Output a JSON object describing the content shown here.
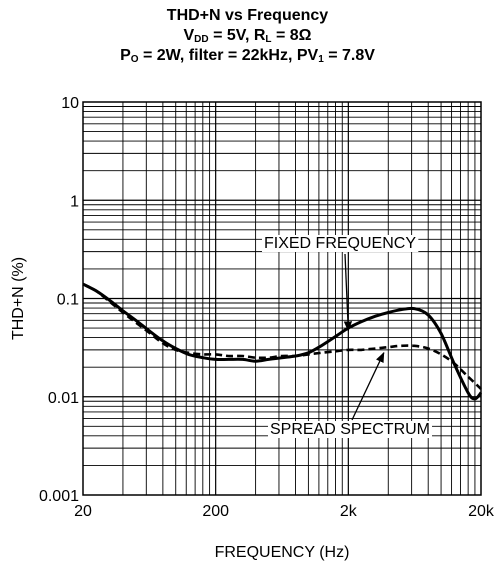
{
  "title": {
    "line1": "THD+N vs Frequency",
    "line2": {
      "vdd_sym": "V",
      "vdd_sub": "DD",
      "vdd_val": " = 5V, ",
      "rl_sym": "R",
      "rl_sub": "L",
      "rl_val": " = 8Ω"
    },
    "line3": {
      "po_sym": "P",
      "po_sub": "O",
      "po_val": " = 2W, filter = 22kHz, ",
      "pv_sym": "PV",
      "pv_sub": "1",
      "pv_val": " = 7.8V"
    }
  },
  "chart_data": {
    "type": "line",
    "xlabel": "FREQUENCY (Hz)",
    "ylabel": "THD+N (%)",
    "xscale": "log",
    "yscale": "log",
    "xlim": [
      20,
      20000
    ],
    "ylim": [
      0.001,
      10
    ],
    "grid": true,
    "xticks": [
      {
        "value": 20,
        "label": "20"
      },
      {
        "value": 200,
        "label": "200"
      },
      {
        "value": 2000,
        "label": "2k"
      },
      {
        "value": 20000,
        "label": "20k"
      }
    ],
    "yticks": [
      {
        "value": 0.001,
        "label": "0.001"
      },
      {
        "value": 0.01,
        "label": "0.01"
      },
      {
        "value": 0.1,
        "label": "0.1"
      },
      {
        "value": 1,
        "label": "1"
      },
      {
        "value": 10,
        "label": "10"
      }
    ],
    "series": [
      {
        "name": "FIXED FREQUENCY",
        "style": "solid",
        "color": "#000000",
        "x": [
          20,
          25,
          32,
          40,
          50,
          63,
          80,
          100,
          125,
          160,
          200,
          250,
          320,
          400,
          500,
          630,
          800,
          1000,
          1250,
          1600,
          2000,
          2500,
          3200,
          4000,
          5000,
          6300,
          8000,
          10000,
          12500,
          16000,
          18000,
          20000
        ],
        "y": [
          0.14,
          0.12,
          0.095,
          0.075,
          0.06,
          0.047,
          0.037,
          0.031,
          0.027,
          0.025,
          0.024,
          0.024,
          0.024,
          0.023,
          0.024,
          0.025,
          0.026,
          0.028,
          0.033,
          0.041,
          0.05,
          0.058,
          0.066,
          0.072,
          0.077,
          0.079,
          0.068,
          0.044,
          0.022,
          0.011,
          0.0095,
          0.011
        ]
      },
      {
        "name": "SPREAD SPECTRUM",
        "style": "dashed",
        "color": "#000000",
        "x": [
          20,
          25,
          32,
          40,
          50,
          63,
          80,
          100,
          125,
          160,
          200,
          250,
          320,
          400,
          500,
          630,
          800,
          1000,
          1250,
          1600,
          2000,
          2500,
          3200,
          4000,
          5000,
          6300,
          8000,
          10000,
          12500,
          16000,
          20000
        ],
        "y": [
          0.14,
          0.12,
          0.092,
          0.072,
          0.057,
          0.045,
          0.035,
          0.03,
          0.028,
          0.027,
          0.027,
          0.026,
          0.026,
          0.025,
          0.025,
          0.026,
          0.026,
          0.027,
          0.028,
          0.029,
          0.03,
          0.03,
          0.031,
          0.032,
          0.033,
          0.033,
          0.031,
          0.027,
          0.022,
          0.016,
          0.012
        ]
      }
    ],
    "annotations": [
      {
        "text": "FIXED FREQUENCY",
        "series": 0,
        "points_to": {
          "x": 2000,
          "y": 0.047
        }
      },
      {
        "text": "SPREAD SPECTRUM",
        "series": 1,
        "points_to": {
          "x": 3700,
          "y": 0.028
        }
      }
    ]
  }
}
